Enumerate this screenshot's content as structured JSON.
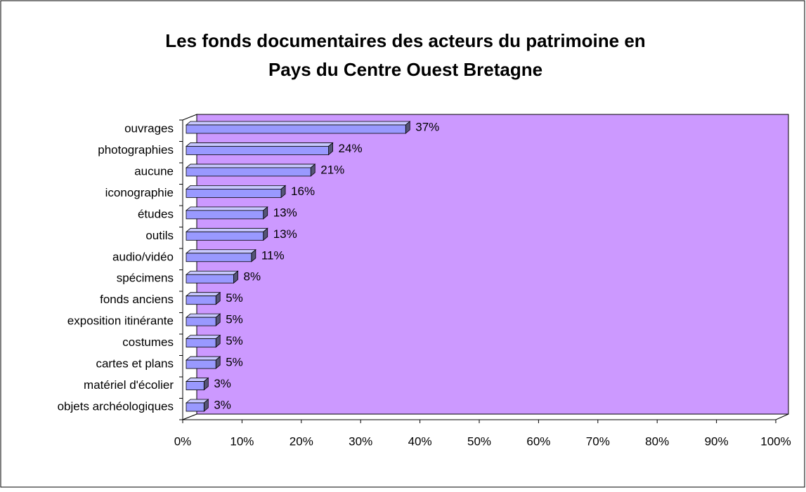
{
  "chart_data": {
    "type": "bar3d_horizontal",
    "title": "Les fonds documentaires des acteurs du patrimoine en",
    "subtitle": "Pays du Centre Ouest Bretagne",
    "categories": [
      "ouvrages",
      "photographies",
      "aucune",
      "iconographie",
      "études",
      "outils",
      "audio/vidéo",
      "spécimens",
      "fonds anciens",
      "exposition itinérante",
      "costumes",
      "cartes et plans",
      "matériel d'écolier",
      "objets archéologiques"
    ],
    "values": [
      37,
      24,
      21,
      16,
      13,
      13,
      11,
      8,
      5,
      5,
      5,
      5,
      3,
      3
    ],
    "value_labels": [
      "37%",
      "24%",
      "21%",
      "16%",
      "13%",
      "13%",
      "11%",
      "8%",
      "5%",
      "5%",
      "5%",
      "5%",
      "3%",
      "3%"
    ],
    "color": "#9999ff",
    "wall_color": "#cc99ff",
    "xlim": [
      0,
      100
    ],
    "xticks": [
      {
        "value": 0,
        "label": "0%"
      },
      {
        "value": 10,
        "label": "10%"
      },
      {
        "value": 20,
        "label": "20%"
      },
      {
        "value": 30,
        "label": "30%"
      },
      {
        "value": 40,
        "label": "40%"
      },
      {
        "value": 50,
        "label": "50%"
      },
      {
        "value": 60,
        "label": "60%"
      },
      {
        "value": 70,
        "label": "70%"
      },
      {
        "value": 80,
        "label": "80%"
      },
      {
        "value": 90,
        "label": "90%"
      },
      {
        "value": 100,
        "label": "100%"
      }
    ],
    "grid": false
  }
}
